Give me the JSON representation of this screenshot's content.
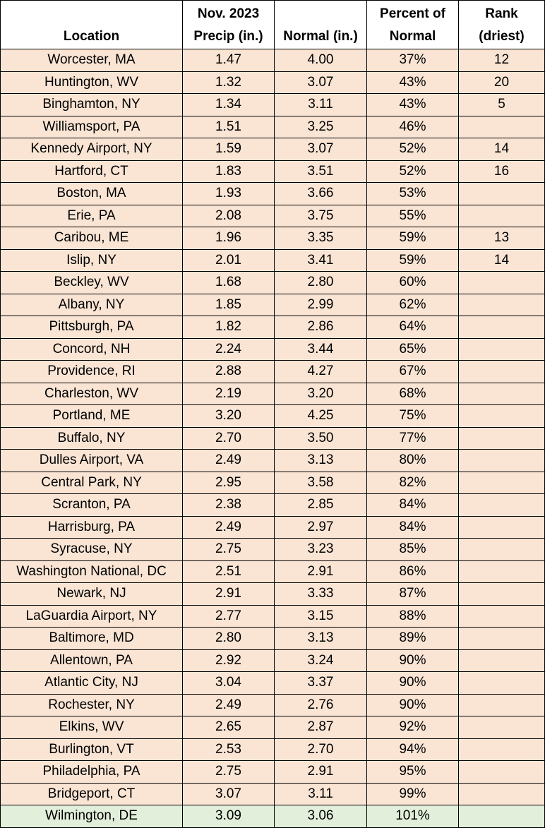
{
  "headers": {
    "location": "Location",
    "precip_line1": "Nov. 2023",
    "precip_line2": "Precip (in.)",
    "normal": "Normal (in.)",
    "percent_line1": "Percent of",
    "percent_line2": "Normal",
    "rank_line1": "Rank",
    "rank_line2": "(driest)"
  },
  "colors": {
    "row_fill": "#fae5d5",
    "highlight_fill": "#e2efda"
  },
  "highlighted_row": "Wilmington, DE",
  "rows": [
    {
      "location": "Worcester, MA",
      "precip": "1.47",
      "normal": "4.00",
      "percent": "37%",
      "rank": "12"
    },
    {
      "location": "Huntington, WV",
      "precip": "1.32",
      "normal": "3.07",
      "percent": "43%",
      "rank": "20"
    },
    {
      "location": "Binghamton, NY",
      "precip": "1.34",
      "normal": "3.11",
      "percent": "43%",
      "rank": "5"
    },
    {
      "location": "Williamsport, PA",
      "precip": "1.51",
      "normal": "3.25",
      "percent": "46%",
      "rank": ""
    },
    {
      "location": "Kennedy Airport, NY",
      "precip": "1.59",
      "normal": "3.07",
      "percent": "52%",
      "rank": "14"
    },
    {
      "location": "Hartford, CT",
      "precip": "1.83",
      "normal": "3.51",
      "percent": "52%",
      "rank": "16"
    },
    {
      "location": "Boston, MA",
      "precip": "1.93",
      "normal": "3.66",
      "percent": "53%",
      "rank": ""
    },
    {
      "location": "Erie, PA",
      "precip": "2.08",
      "normal": "3.75",
      "percent": "55%",
      "rank": ""
    },
    {
      "location": "Caribou, ME",
      "precip": "1.96",
      "normal": "3.35",
      "percent": "59%",
      "rank": "13"
    },
    {
      "location": "Islip, NY",
      "precip": "2.01",
      "normal": "3.41",
      "percent": "59%",
      "rank": "14"
    },
    {
      "location": "Beckley, WV",
      "precip": "1.68",
      "normal": "2.80",
      "percent": "60%",
      "rank": ""
    },
    {
      "location": "Albany, NY",
      "precip": "1.85",
      "normal": "2.99",
      "percent": "62%",
      "rank": ""
    },
    {
      "location": "Pittsburgh, PA",
      "precip": "1.82",
      "normal": "2.86",
      "percent": "64%",
      "rank": ""
    },
    {
      "location": "Concord, NH",
      "precip": "2.24",
      "normal": "3.44",
      "percent": "65%",
      "rank": ""
    },
    {
      "location": "Providence, RI",
      "precip": "2.88",
      "normal": "4.27",
      "percent": "67%",
      "rank": ""
    },
    {
      "location": "Charleston, WV",
      "precip": "2.19",
      "normal": "3.20",
      "percent": "68%",
      "rank": ""
    },
    {
      "location": "Portland, ME",
      "precip": "3.20",
      "normal": "4.25",
      "percent": "75%",
      "rank": ""
    },
    {
      "location": "Buffalo, NY",
      "precip": "2.70",
      "normal": "3.50",
      "percent": "77%",
      "rank": ""
    },
    {
      "location": "Dulles Airport, VA",
      "precip": "2.49",
      "normal": "3.13",
      "percent": "80%",
      "rank": ""
    },
    {
      "location": "Central Park, NY",
      "precip": "2.95",
      "normal": "3.58",
      "percent": "82%",
      "rank": ""
    },
    {
      "location": "Scranton, PA",
      "precip": "2.38",
      "normal": "2.85",
      "percent": "84%",
      "rank": ""
    },
    {
      "location": "Harrisburg, PA",
      "precip": "2.49",
      "normal": "2.97",
      "percent": "84%",
      "rank": ""
    },
    {
      "location": "Syracuse, NY",
      "precip": "2.75",
      "normal": "3.23",
      "percent": "85%",
      "rank": ""
    },
    {
      "location": "Washington National, DC",
      "precip": "2.51",
      "normal": "2.91",
      "percent": "86%",
      "rank": ""
    },
    {
      "location": "Newark, NJ",
      "precip": "2.91",
      "normal": "3.33",
      "percent": "87%",
      "rank": ""
    },
    {
      "location": "LaGuardia Airport, NY",
      "precip": "2.77",
      "normal": "3.15",
      "percent": "88%",
      "rank": ""
    },
    {
      "location": "Baltimore, MD",
      "precip": "2.80",
      "normal": "3.13",
      "percent": "89%",
      "rank": ""
    },
    {
      "location": "Allentown, PA",
      "precip": "2.92",
      "normal": "3.24",
      "percent": "90%",
      "rank": ""
    },
    {
      "location": "Atlantic City, NJ",
      "precip": "3.04",
      "normal": "3.37",
      "percent": "90%",
      "rank": ""
    },
    {
      "location": "Rochester, NY",
      "precip": "2.49",
      "normal": "2.76",
      "percent": "90%",
      "rank": ""
    },
    {
      "location": "Elkins, WV",
      "precip": "2.65",
      "normal": "2.87",
      "percent": "92%",
      "rank": ""
    },
    {
      "location": "Burlington, VT",
      "precip": "2.53",
      "normal": "2.70",
      "percent": "94%",
      "rank": ""
    },
    {
      "location": "Philadelphia, PA",
      "precip": "2.75",
      "normal": "2.91",
      "percent": "95%",
      "rank": ""
    },
    {
      "location": "Bridgeport, CT",
      "precip": "3.07",
      "normal": "3.11",
      "percent": "99%",
      "rank": ""
    },
    {
      "location": "Wilmington, DE",
      "precip": "3.09",
      "normal": "3.06",
      "percent": "101%",
      "rank": ""
    }
  ]
}
